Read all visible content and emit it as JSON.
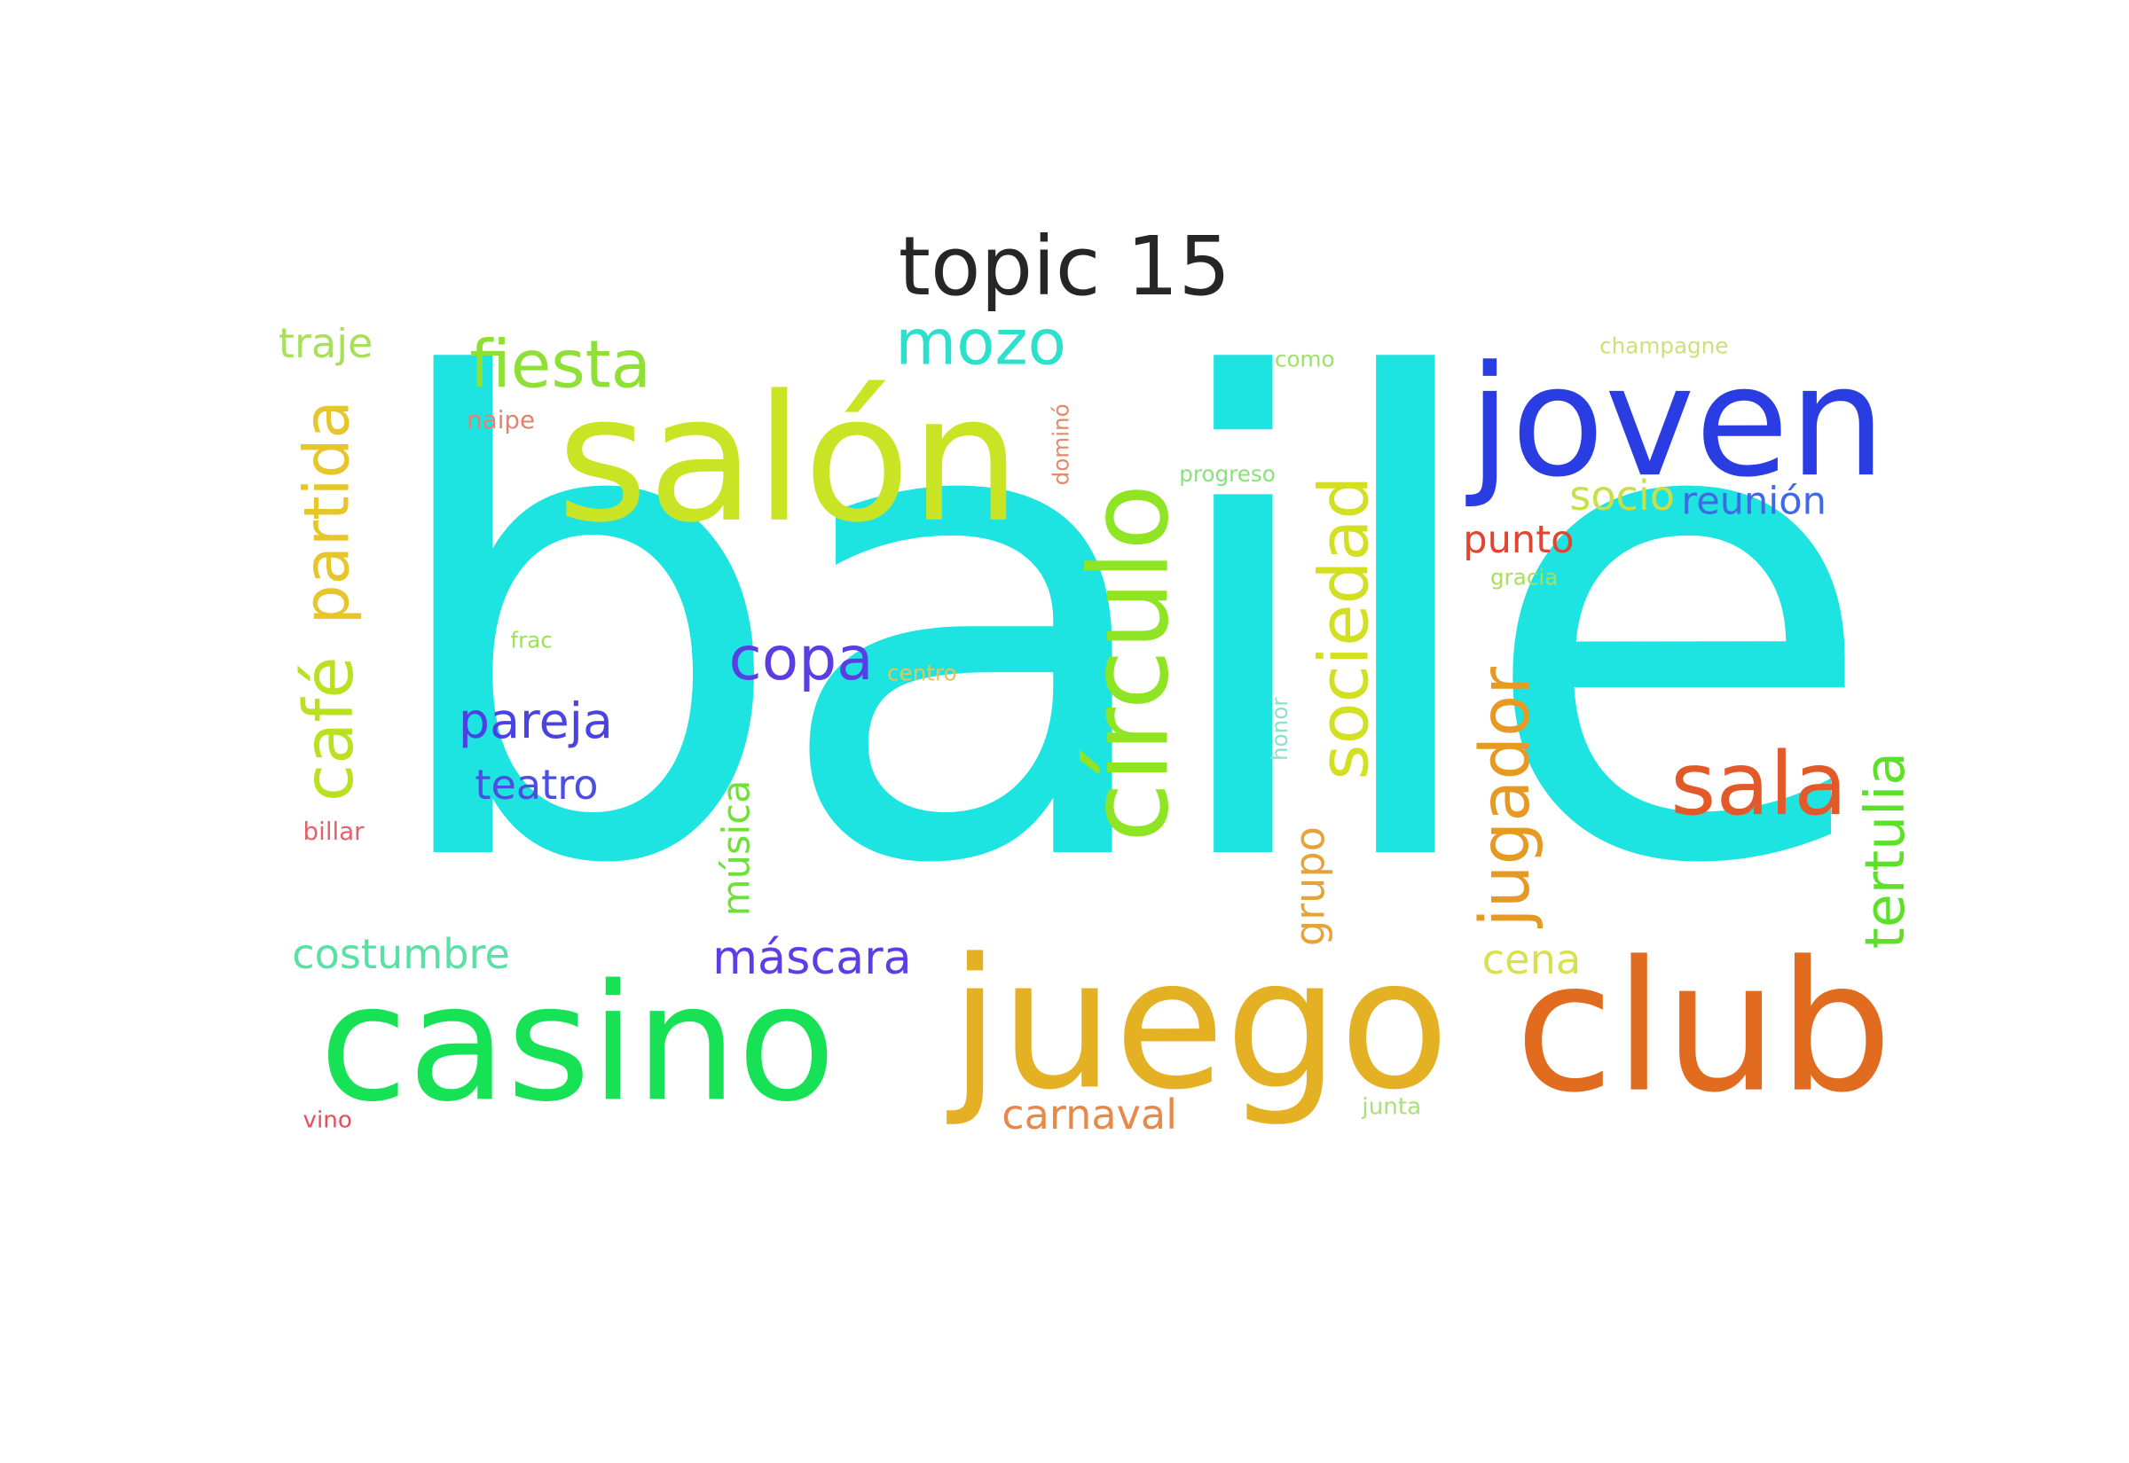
{
  "title": "topic 15",
  "words": [
    {
      "id": "baile",
      "text": "baile",
      "color": "#1de4e0"
    },
    {
      "id": "salon",
      "text": "salón",
      "color": "#c8e424"
    },
    {
      "id": "joven",
      "text": "joven",
      "color": "#2a3de3"
    },
    {
      "id": "juego",
      "text": "juego",
      "color": "#e5b124"
    },
    {
      "id": "club",
      "text": "club",
      "color": "#e16b1e"
    },
    {
      "id": "casino",
      "text": "casino",
      "color": "#17e255"
    },
    {
      "id": "circulo",
      "text": "círculo",
      "color": "#8fe424"
    },
    {
      "id": "sociedad",
      "text": "sociedad",
      "color": "#d2e021"
    },
    {
      "id": "sala",
      "text": "sala",
      "color": "#e25a2a"
    },
    {
      "id": "jugador",
      "text": "jugador",
      "color": "#e69a24"
    },
    {
      "id": "tertulia",
      "text": "tertulia",
      "color": "#5de02a"
    },
    {
      "id": "cafe",
      "text": "café",
      "color": "#b9e021"
    },
    {
      "id": "partida",
      "text": "partida",
      "color": "#e6c62a"
    },
    {
      "id": "fiesta",
      "text": "fiesta",
      "color": "#8fe036"
    },
    {
      "id": "mozo",
      "text": "mozo",
      "color": "#2ce0cc"
    },
    {
      "id": "copa",
      "text": "copa",
      "color": "#5b3ee3"
    },
    {
      "id": "pareja",
      "text": "pareja",
      "color": "#4a42e3"
    },
    {
      "id": "teatro",
      "text": "teatro",
      "color": "#4a4ee3"
    },
    {
      "id": "musica",
      "text": "música",
      "color": "#6ee037"
    },
    {
      "id": "mascara",
      "text": "máscara",
      "color": "#5d3ee6"
    },
    {
      "id": "costumbre",
      "text": "costumbre",
      "color": "#59e0a5"
    },
    {
      "id": "carnaval",
      "text": "carnaval",
      "color": "#e58a4a"
    },
    {
      "id": "grupo",
      "text": "grupo",
      "color": "#e6a33a"
    },
    {
      "id": "cena",
      "text": "cena",
      "color": "#d9e050"
    },
    {
      "id": "socio",
      "text": "socio",
      "color": "#c6e04a"
    },
    {
      "id": "reunion",
      "text": "reunión",
      "color": "#3f6ae3"
    },
    {
      "id": "punto",
      "text": "punto",
      "color": "#e2452f"
    },
    {
      "id": "traje",
      "text": "traje",
      "color": "#a9e05a"
    },
    {
      "id": "champagne",
      "text": "champagne",
      "color": "#cde07a"
    },
    {
      "id": "naipe",
      "text": "naipe",
      "color": "#e4836d"
    },
    {
      "id": "domino",
      "text": "dominó",
      "color": "#e4896a"
    },
    {
      "id": "progreso",
      "text": "progreso",
      "color": "#8ae07a"
    },
    {
      "id": "como",
      "text": "como",
      "color": "#9ee06a"
    },
    {
      "id": "gracia",
      "text": "gracia",
      "color": "#a9e05a"
    },
    {
      "id": "frac",
      "text": "frac",
      "color": "#9ee05a"
    },
    {
      "id": "centro",
      "text": "centro",
      "color": "#e2c55a"
    },
    {
      "id": "honor",
      "text": "honor",
      "color": "#8ee0c8"
    },
    {
      "id": "billar",
      "text": "billar",
      "color": "#e4606a"
    },
    {
      "id": "vino",
      "text": "vino",
      "color": "#e4505a"
    },
    {
      "id": "junta",
      "text": "junta",
      "color": "#a9e07a"
    }
  ]
}
